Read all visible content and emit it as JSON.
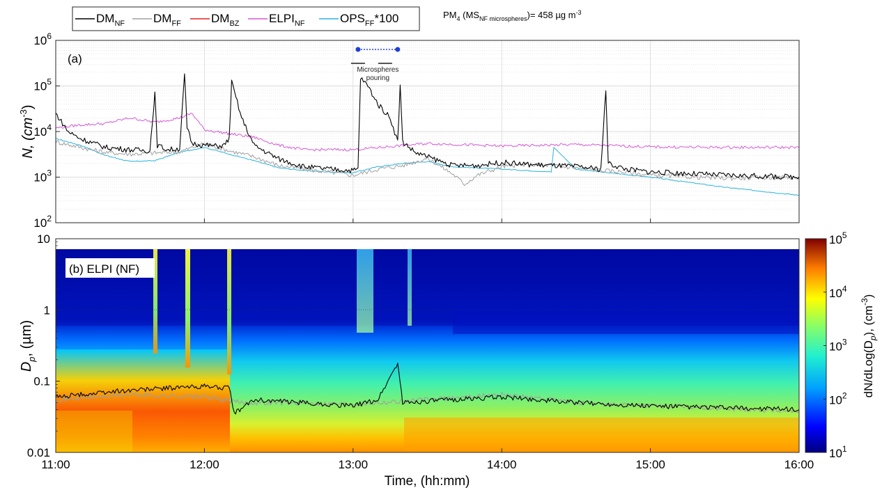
{
  "legend": {
    "items": [
      {
        "base": "DM",
        "sub": "NF",
        "suffix": "",
        "color": "#000000"
      },
      {
        "base": "DM",
        "sub": "FF",
        "suffix": "",
        "color": "#a0a0a0"
      },
      {
        "base": "DM",
        "sub": "BZ",
        "suffix": "",
        "color": "#e02020"
      },
      {
        "base": "ELPI",
        "sub": "NF",
        "suffix": "",
        "color": "#d65ad6"
      },
      {
        "base": "OPS",
        "sub": "FF",
        "suffix": "*100",
        "color": "#2bb3dc"
      }
    ],
    "pm_note": {
      "prefix": "PM",
      "prefix_sub": "4",
      "mid": " (MS",
      "mid_sub": "NF microspheres",
      "tail": ")= 458 µg m",
      "tail_sup": "-3"
    }
  },
  "chart_data": [
    {
      "type": "line",
      "panel_label": "(a)",
      "ylabel": {
        "main": "N, (cm",
        "sup": "-3",
        "close": ")"
      },
      "yscale": "log",
      "ylim": [
        100,
        1000000
      ],
      "y_ticks": [
        {
          "base": "10",
          "exp": "2"
        },
        {
          "base": "10",
          "exp": "3"
        },
        {
          "base": "10",
          "exp": "4"
        },
        {
          "base": "10",
          "exp": "5"
        },
        {
          "base": "10",
          "exp": "6"
        }
      ],
      "xlim": [
        "11:00",
        "16:00"
      ],
      "grid": true,
      "annotation": {
        "text_lines": [
          "Microspheres",
          "pouring"
        ],
        "start": "13:02",
        "end": "13:18",
        "marker_color": "#1f3fd9"
      },
      "series": [
        {
          "name": "DM NF",
          "color": "#000000",
          "x": [
            "11:00",
            "11:05",
            "11:10",
            "11:20",
            "11:30",
            "11:38",
            "11:40",
            "11:41",
            "11:45",
            "11:50",
            "11:52",
            "11:53",
            "11:55",
            "12:00",
            "12:05",
            "12:08",
            "12:10",
            "12:11",
            "12:15",
            "12:20",
            "12:30",
            "12:40",
            "12:50",
            "13:00",
            "13:02",
            "13:03",
            "13:06",
            "13:10",
            "13:15",
            "13:18",
            "13:19",
            "13:20",
            "13:25",
            "13:30",
            "13:40",
            "13:50",
            "14:00",
            "14:10",
            "14:20",
            "14:30",
            "14:40",
            "14:42",
            "14:43",
            "14:50",
            "15:00",
            "15:30",
            "16:00"
          ],
          "y": [
            25000,
            10000,
            7000,
            4500,
            4000,
            3800,
            70000,
            5000,
            4000,
            4200,
            180000,
            12000,
            5500,
            5000,
            4800,
            5000,
            7000,
            120000,
            20000,
            5000,
            2500,
            1700,
            1500,
            1400,
            1500,
            150000,
            100000,
            40000,
            20000,
            6000,
            100000,
            6000,
            3500,
            2800,
            1800,
            1800,
            2100,
            1900,
            1800,
            1700,
            1500,
            80000,
            2000,
            1500,
            1300,
            1100,
            1000
          ]
        },
        {
          "name": "DM FF",
          "color": "#a0a0a0",
          "x": [
            "11:00",
            "11:10",
            "11:20",
            "11:30",
            "11:40",
            "11:50",
            "12:00",
            "12:10",
            "12:20",
            "12:30",
            "12:40",
            "12:50",
            "13:00",
            "13:10",
            "13:20",
            "13:30",
            "13:40",
            "13:45",
            "13:50",
            "14:00",
            "14:10",
            "14:20",
            "14:30",
            "14:40",
            "14:50",
            "15:00",
            "15:30",
            "16:00"
          ],
          "y": [
            6000,
            4500,
            3500,
            3200,
            3400,
            3600,
            5500,
            3800,
            2800,
            1800,
            1500,
            1300,
            1100,
            1500,
            1800,
            2600,
            1200,
            700,
            1100,
            1700,
            1900,
            1800,
            1600,
            1400,
            1300,
            1100,
            950,
            1000
          ]
        },
        {
          "name": "ELPI NF",
          "color": "#d65ad6",
          "x": [
            "11:00",
            "11:10",
            "11:20",
            "11:30",
            "11:40",
            "11:50",
            "11:55",
            "12:00",
            "12:10",
            "12:20",
            "12:30",
            "12:40",
            "13:00",
            "13:30",
            "14:00",
            "14:30",
            "15:00",
            "15:30",
            "16:00"
          ],
          "y": [
            12000,
            14000,
            15000,
            20000,
            16000,
            20000,
            25000,
            11000,
            9000,
            7500,
            5000,
            4000,
            4000,
            5500,
            4800,
            5200,
            4600,
            4500,
            4500
          ]
        },
        {
          "name": "OPS FF *100",
          "color": "#2bb3dc",
          "x": [
            "11:00",
            "11:10",
            "11:20",
            "11:30",
            "11:40",
            "11:50",
            "12:00",
            "12:10",
            "12:20",
            "12:30",
            "12:40",
            "12:50",
            "13:00",
            "13:10",
            "13:20",
            "13:30",
            "13:40",
            "14:00",
            "14:20",
            "14:21",
            "14:30",
            "14:40",
            "15:00",
            "15:30",
            "16:00"
          ],
          "y": [
            7000,
            5000,
            3000,
            2200,
            2300,
            3500,
            4500,
            3200,
            2300,
            1600,
            1400,
            1300,
            1250,
            1700,
            2000,
            2200,
            1700,
            1500,
            1300,
            4500,
            1500,
            1300,
            1000,
            600,
            400
          ]
        }
      ]
    },
    {
      "type": "heatmap",
      "panel_label": "(b) ELPI (NF)",
      "ylabel": {
        "main": "D",
        "sub": "p",
        "rest": ", (µm)"
      },
      "yscale": "log",
      "ylim": [
        0.01,
        10
      ],
      "y_ticks": [
        "0.01",
        "0.1",
        "1",
        "10"
      ],
      "xlabel": "Time, (hh:mm)",
      "x_ticks": [
        "11:00",
        "12:00",
        "13:00",
        "14:00",
        "15:00",
        "16:00"
      ],
      "colorbar": {
        "scale": "log",
        "range": [
          10,
          100000
        ],
        "ticks": [
          {
            "base": "10",
            "exp": "1"
          },
          {
            "base": "10",
            "exp": "2"
          },
          {
            "base": "10",
            "exp": "3"
          },
          {
            "base": "10",
            "exp": "4"
          },
          {
            "base": "10",
            "exp": "5"
          }
        ],
        "label": {
          "a": "dN/dLog(D",
          "sub": "p",
          "b": "), (cm",
          "sup": "-3",
          "c": ")"
        }
      },
      "series": [
        {
          "name": "DM NF",
          "color": "#000000",
          "x": [
            "11:00",
            "11:30",
            "12:00",
            "12:10",
            "12:12",
            "12:20",
            "13:00",
            "13:10",
            "13:18",
            "13:20",
            "13:40",
            "14:00",
            "14:30",
            "15:00",
            "16:00"
          ],
          "y": [
            0.06,
            0.075,
            0.085,
            0.08,
            0.035,
            0.055,
            0.045,
            0.055,
            0.18,
            0.05,
            0.055,
            0.06,
            0.05,
            0.045,
            0.04
          ]
        },
        {
          "name": "DM FF",
          "color": "#a0a0a0",
          "x": [
            "11:00",
            "11:30",
            "12:00",
            "12:15",
            "12:30",
            "13:00",
            "13:30",
            "14:00",
            "14:30",
            "15:00",
            "16:00"
          ],
          "y": [
            0.055,
            0.065,
            0.06,
            0.05,
            0.05,
            0.048,
            0.055,
            0.065,
            0.05,
            0.045,
            0.038
          ]
        }
      ]
    }
  ]
}
